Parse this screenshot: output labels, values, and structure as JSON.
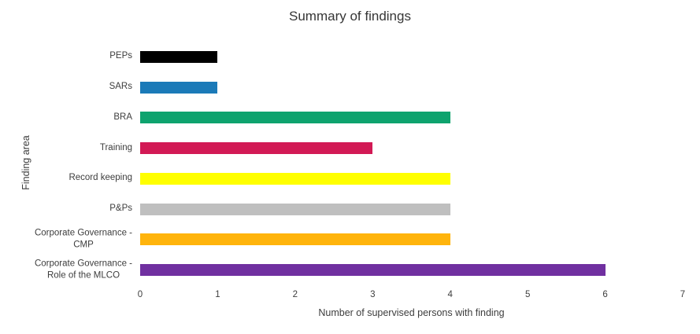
{
  "chart_data": {
    "type": "bar",
    "orientation": "horizontal",
    "title": "Summary of findings",
    "xlabel": "Number of supervised persons with finding",
    "ylabel": "Finding area",
    "categories": [
      "PEPs",
      "SARs",
      "BRA",
      "Training",
      "Record keeping",
      "P&Ps",
      "Corporate Governance -\nCMP",
      "Corporate Governance -\nRole of the MLCO"
    ],
    "values": [
      1,
      1,
      4,
      3,
      4,
      4,
      4,
      6
    ],
    "bar_colors": [
      "#000000",
      "#1B7AB8",
      "#0EA36E",
      "#D21955",
      "#FFFF00",
      "#BFBFBF",
      "#FFB40C",
      "#7030A0"
    ],
    "xlim": [
      0,
      7
    ],
    "xticks": [
      0,
      1,
      2,
      3,
      4,
      5,
      6,
      7
    ],
    "grid": false,
    "legend": false,
    "background_color": "#FFFFFF"
  }
}
